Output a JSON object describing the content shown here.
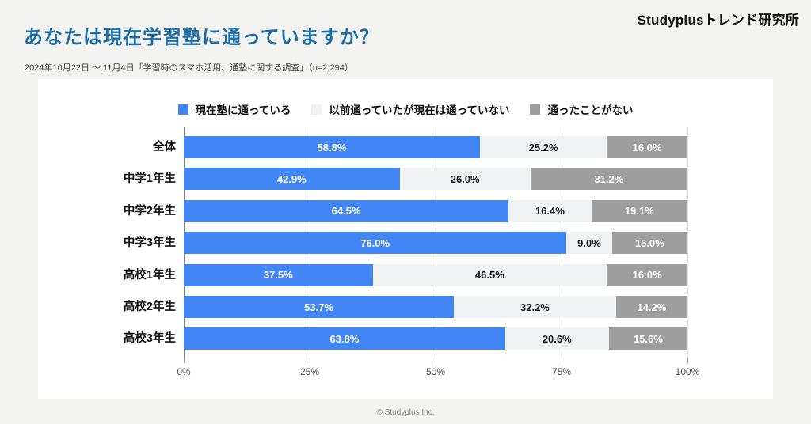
{
  "header": {
    "brand": "Studyplusトレンド研究所",
    "title": "あなたは現在学習塾に通っていますか？",
    "subtitle": "2024年10月22日 ～ 11月4日「学習時のスマホ活用、通塾に関する調査」（n=2,294）"
  },
  "chart_data": {
    "type": "bar",
    "stacked": true,
    "orientation": "horizontal",
    "title": "あなたは現在学習塾に通っていますか？",
    "categories": [
      "全体",
      "中学1年生",
      "中学2年生",
      "中学3年生",
      "高校1年生",
      "高校2年生",
      "高校3年生"
    ],
    "series": [
      {
        "name": "現在塾に通っている",
        "color": "#4285f4",
        "label_color": "#ffffff",
        "values": [
          58.8,
          42.9,
          64.5,
          76.0,
          37.5,
          53.7,
          63.8
        ]
      },
      {
        "name": "以前通っていたが現在は通っていない",
        "color": "#f0f1f2",
        "label_color": "#1a1a1a",
        "values": [
          25.2,
          26.0,
          16.4,
          9.0,
          46.5,
          32.2,
          20.6
        ]
      },
      {
        "name": "通ったことがない",
        "color": "#9e9e9e",
        "label_color": "#ffffff",
        "values": [
          16.0,
          31.2,
          19.1,
          15.0,
          16.0,
          14.2,
          15.6
        ]
      }
    ],
    "xlim": [
      0,
      100
    ],
    "x_ticks": [
      "0%",
      "25%",
      "50%",
      "75%",
      "100%"
    ],
    "grid": true,
    "legend_position": "top"
  },
  "footer": {
    "copyright": "© Studyplus Inc."
  }
}
